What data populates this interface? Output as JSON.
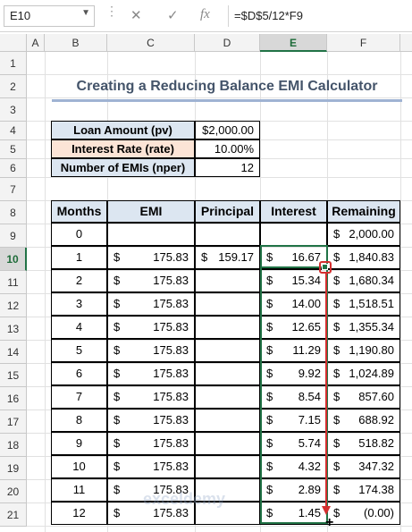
{
  "formula_bar": {
    "name_box": "E10",
    "formula": "=$D$5/12*F9",
    "cancel_icon": "cancel-icon",
    "enter_icon": "checkmark-icon",
    "function_icon": "fx-icon"
  },
  "columns": [
    "A",
    "B",
    "C",
    "D",
    "E",
    "F"
  ],
  "selected_column": "E",
  "rows": [
    "1",
    "2",
    "3",
    "4",
    "5",
    "6",
    "7",
    "8",
    "9",
    "10",
    "11",
    "12",
    "13",
    "14",
    "15",
    "16",
    "17",
    "18",
    "19",
    "20",
    "21"
  ],
  "selected_row": "10",
  "title": "Creating a Reducing Balance EMI Calculator",
  "inputs": [
    {
      "label": "Loan Amount (pv)",
      "value": "$2,000.00"
    },
    {
      "label": "Interest Rate (rate)",
      "value": "10.00%"
    },
    {
      "label": "Number of EMIs (nper)",
      "value": "12"
    }
  ],
  "table": {
    "headers": [
      "Months",
      "EMI",
      "Principal",
      "Interest",
      "Remaining"
    ],
    "rows": [
      {
        "month": "0",
        "emi": "",
        "principal": "",
        "interest": "",
        "remaining": "2,000.00"
      },
      {
        "month": "1",
        "emi": "175.83",
        "principal": "159.17",
        "interest": "16.67",
        "remaining": "1,840.83"
      },
      {
        "month": "2",
        "emi": "175.83",
        "principal": "",
        "interest": "15.34",
        "remaining": "1,680.34"
      },
      {
        "month": "3",
        "emi": "175.83",
        "principal": "",
        "interest": "14.00",
        "remaining": "1,518.51"
      },
      {
        "month": "4",
        "emi": "175.83",
        "principal": "",
        "interest": "12.65",
        "remaining": "1,355.34"
      },
      {
        "month": "5",
        "emi": "175.83",
        "principal": "",
        "interest": "11.29",
        "remaining": "1,190.80"
      },
      {
        "month": "6",
        "emi": "175.83",
        "principal": "",
        "interest": "9.92",
        "remaining": "1,024.89"
      },
      {
        "month": "7",
        "emi": "175.83",
        "principal": "",
        "interest": "8.54",
        "remaining": "857.60"
      },
      {
        "month": "8",
        "emi": "175.83",
        "principal": "",
        "interest": "7.15",
        "remaining": "688.92"
      },
      {
        "month": "9",
        "emi": "175.83",
        "principal": "",
        "interest": "5.74",
        "remaining": "518.82"
      },
      {
        "month": "10",
        "emi": "175.83",
        "principal": "",
        "interest": "4.32",
        "remaining": "347.32"
      },
      {
        "month": "11",
        "emi": "175.83",
        "principal": "",
        "interest": "2.89",
        "remaining": "174.38"
      },
      {
        "month": "12",
        "emi": "175.83",
        "principal": "",
        "interest": "1.45",
        "remaining": "(0.00)"
      }
    ]
  },
  "currency_symbol": "$",
  "watermark": "exceldemy",
  "colors": {
    "accent_green": "#217346",
    "arrow_red": "#d32f2f",
    "header_blue": "#dce6f1",
    "peach": "#fce4d6"
  }
}
